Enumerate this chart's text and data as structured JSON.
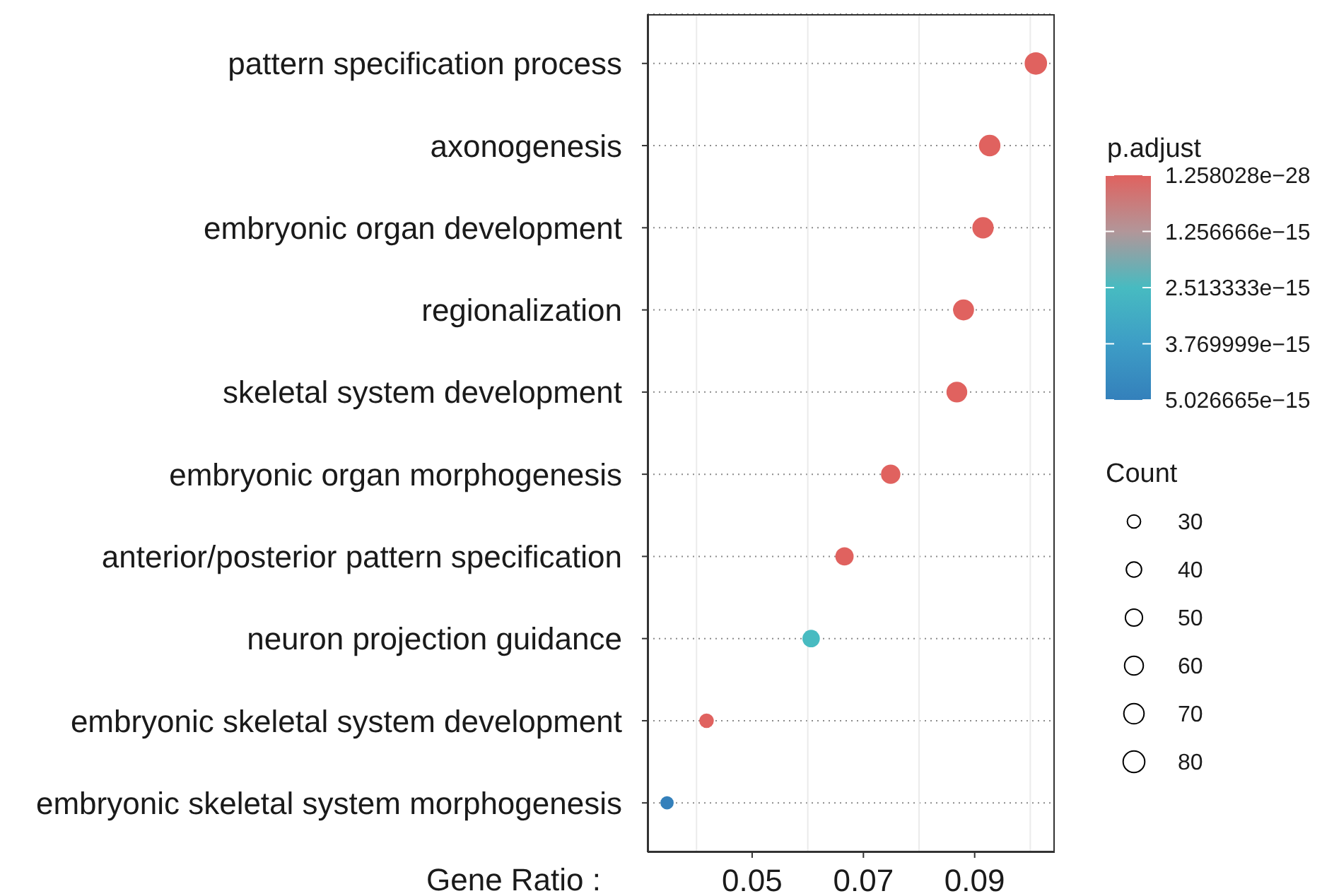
{
  "chart_data": {
    "type": "bubble",
    "orientation": "horizontal",
    "categories": [
      "pattern specification process",
      "axonogenesis",
      "embryonic organ development",
      "regionalization",
      "skeletal system development",
      "embryonic organ morphogenesis",
      "anterior/posterior pattern specification",
      "neuron projection guidance",
      "embryonic skeletal system development",
      "embryonic skeletal system morphogenesis"
    ],
    "values": [
      0.101,
      0.0927,
      0.0915,
      0.088,
      0.0868,
      0.0749,
      0.0666,
      0.0606,
      0.0418,
      0.0347
    ],
    "sizes": [
      86,
      79,
      78,
      75,
      74,
      64,
      57,
      52,
      36,
      30
    ],
    "cvalues": [
      1.258028e-28,
      1e-24,
      1e-22,
      1e-21,
      1e-20,
      1e-19,
      1e-18,
      2.5e-15,
      1e-17,
      5.026665e-15
    ],
    "xlabel": "Gene Ratio :",
    "clabel": "p.adjust",
    "legend_title": "Count",
    "xlim": [
      0.0312,
      0.1044
    ],
    "xticks": [
      {
        "value": 0.04,
        "label": null
      },
      0.05,
      {
        "value": 0.06,
        "label": null
      },
      0.07,
      {
        "value": 0.08,
        "label": null
      },
      0.09,
      {
        "value": 0.1,
        "label": null
      }
    ],
    "clim": [
      5.026665e-15,
      1.258028e-28
    ],
    "cticks": [
      {
        "value": 1.258028e-28,
        "label": "1.258028e−28"
      },
      {
        "value": 1.256666e-15,
        "label": "1.256666e−15"
      },
      {
        "value": 2.513333e-15,
        "label": "2.513333e−15"
      },
      {
        "value": 3.769999e-15,
        "label": "3.769999e−15"
      },
      {
        "value": 5.026665e-15,
        "label": "5.026665e−15"
      }
    ],
    "size_legend": [
      30,
      40,
      50,
      60,
      70,
      80
    ],
    "grid": true,
    "marker": "circle"
  }
}
